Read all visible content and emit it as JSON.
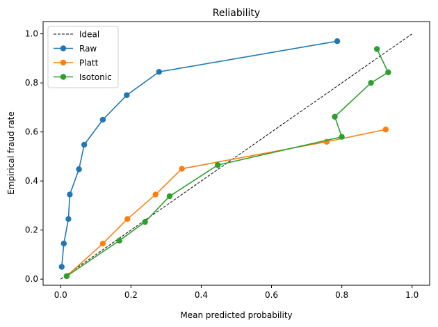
{
  "chart_data": {
    "type": "line",
    "title": "Reliability",
    "xlabel": "Mean predicted probability",
    "ylabel": "Empirical fraud rate",
    "xlim": [
      -0.05,
      1.05
    ],
    "ylim": [
      -0.025,
      1.05
    ],
    "xticks": [
      0.0,
      0.2,
      0.4,
      0.6,
      0.8,
      1.0
    ],
    "xtick_labels": [
      "0.0",
      "0.2",
      "0.4",
      "0.6",
      "0.8",
      "1.0"
    ],
    "yticks": [
      0.0,
      0.2,
      0.4,
      0.6,
      0.8,
      1.0
    ],
    "ytick_labels": [
      "0.0",
      "0.2",
      "0.4",
      "0.6",
      "0.8",
      "1.0"
    ],
    "grid": false,
    "legend_position": "top-left",
    "series": [
      {
        "name": "Ideal",
        "style": "dashed",
        "color": "#000000",
        "markers": false,
        "x": [
          0.0,
          1.0
        ],
        "y": [
          0.0,
          1.0
        ]
      },
      {
        "name": "Raw",
        "style": "solid",
        "color": "#1f77b4",
        "markers": true,
        "x": [
          0.003,
          0.009,
          0.022,
          0.026,
          0.052,
          0.067,
          0.12,
          0.188,
          0.28,
          0.787
        ],
        "y": [
          0.05,
          0.145,
          0.245,
          0.345,
          0.448,
          0.548,
          0.65,
          0.75,
          0.845,
          0.97
        ]
      },
      {
        "name": "Platt",
        "style": "solid",
        "color": "#ff7f0e",
        "markers": true,
        "x": [
          0.017,
          0.12,
          0.19,
          0.27,
          0.345,
          0.757,
          0.925
        ],
        "y": [
          0.012,
          0.145,
          0.245,
          0.345,
          0.45,
          0.56,
          0.61
        ]
      },
      {
        "name": "Isotonic",
        "style": "solid",
        "color": "#2ca02c",
        "markers": true,
        "x": [
          0.017,
          0.167,
          0.24,
          0.31,
          0.447,
          0.8,
          0.78,
          0.883,
          0.932,
          0.9
        ],
        "y": [
          0.012,
          0.157,
          0.233,
          0.338,
          0.465,
          0.58,
          0.662,
          0.8,
          0.843,
          0.938
        ]
      }
    ]
  }
}
